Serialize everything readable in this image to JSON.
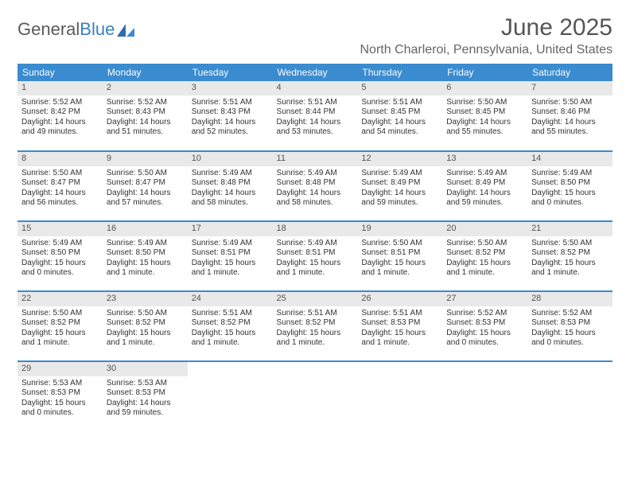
{
  "logo": {
    "text1": "General",
    "text2": "Blue"
  },
  "title": "June 2025",
  "location": "North Charleroi, Pennsylvania, United States",
  "colors": {
    "header_bg": "#3a8bcf",
    "header_text": "#ffffff",
    "daynum_bg": "#e9e9e9",
    "rule": "#3a8bcf",
    "logo_gray": "#5a5a5a",
    "logo_blue": "#3a7fbf"
  },
  "weekdays": [
    "Sunday",
    "Monday",
    "Tuesday",
    "Wednesday",
    "Thursday",
    "Friday",
    "Saturday"
  ],
  "weeks": [
    [
      {
        "n": "1",
        "sr": "Sunrise: 5:52 AM",
        "ss": "Sunset: 8:42 PM",
        "dl": "Daylight: 14 hours and 49 minutes."
      },
      {
        "n": "2",
        "sr": "Sunrise: 5:52 AM",
        "ss": "Sunset: 8:43 PM",
        "dl": "Daylight: 14 hours and 51 minutes."
      },
      {
        "n": "3",
        "sr": "Sunrise: 5:51 AM",
        "ss": "Sunset: 8:43 PM",
        "dl": "Daylight: 14 hours and 52 minutes."
      },
      {
        "n": "4",
        "sr": "Sunrise: 5:51 AM",
        "ss": "Sunset: 8:44 PM",
        "dl": "Daylight: 14 hours and 53 minutes."
      },
      {
        "n": "5",
        "sr": "Sunrise: 5:51 AM",
        "ss": "Sunset: 8:45 PM",
        "dl": "Daylight: 14 hours and 54 minutes."
      },
      {
        "n": "6",
        "sr": "Sunrise: 5:50 AM",
        "ss": "Sunset: 8:45 PM",
        "dl": "Daylight: 14 hours and 55 minutes."
      },
      {
        "n": "7",
        "sr": "Sunrise: 5:50 AM",
        "ss": "Sunset: 8:46 PM",
        "dl": "Daylight: 14 hours and 55 minutes."
      }
    ],
    [
      {
        "n": "8",
        "sr": "Sunrise: 5:50 AM",
        "ss": "Sunset: 8:47 PM",
        "dl": "Daylight: 14 hours and 56 minutes."
      },
      {
        "n": "9",
        "sr": "Sunrise: 5:50 AM",
        "ss": "Sunset: 8:47 PM",
        "dl": "Daylight: 14 hours and 57 minutes."
      },
      {
        "n": "10",
        "sr": "Sunrise: 5:49 AM",
        "ss": "Sunset: 8:48 PM",
        "dl": "Daylight: 14 hours and 58 minutes."
      },
      {
        "n": "11",
        "sr": "Sunrise: 5:49 AM",
        "ss": "Sunset: 8:48 PM",
        "dl": "Daylight: 14 hours and 58 minutes."
      },
      {
        "n": "12",
        "sr": "Sunrise: 5:49 AM",
        "ss": "Sunset: 8:49 PM",
        "dl": "Daylight: 14 hours and 59 minutes."
      },
      {
        "n": "13",
        "sr": "Sunrise: 5:49 AM",
        "ss": "Sunset: 8:49 PM",
        "dl": "Daylight: 14 hours and 59 minutes."
      },
      {
        "n": "14",
        "sr": "Sunrise: 5:49 AM",
        "ss": "Sunset: 8:50 PM",
        "dl": "Daylight: 15 hours and 0 minutes."
      }
    ],
    [
      {
        "n": "15",
        "sr": "Sunrise: 5:49 AM",
        "ss": "Sunset: 8:50 PM",
        "dl": "Daylight: 15 hours and 0 minutes."
      },
      {
        "n": "16",
        "sr": "Sunrise: 5:49 AM",
        "ss": "Sunset: 8:50 PM",
        "dl": "Daylight: 15 hours and 1 minute."
      },
      {
        "n": "17",
        "sr": "Sunrise: 5:49 AM",
        "ss": "Sunset: 8:51 PM",
        "dl": "Daylight: 15 hours and 1 minute."
      },
      {
        "n": "18",
        "sr": "Sunrise: 5:49 AM",
        "ss": "Sunset: 8:51 PM",
        "dl": "Daylight: 15 hours and 1 minute."
      },
      {
        "n": "19",
        "sr": "Sunrise: 5:50 AM",
        "ss": "Sunset: 8:51 PM",
        "dl": "Daylight: 15 hours and 1 minute."
      },
      {
        "n": "20",
        "sr": "Sunrise: 5:50 AM",
        "ss": "Sunset: 8:52 PM",
        "dl": "Daylight: 15 hours and 1 minute."
      },
      {
        "n": "21",
        "sr": "Sunrise: 5:50 AM",
        "ss": "Sunset: 8:52 PM",
        "dl": "Daylight: 15 hours and 1 minute."
      }
    ],
    [
      {
        "n": "22",
        "sr": "Sunrise: 5:50 AM",
        "ss": "Sunset: 8:52 PM",
        "dl": "Daylight: 15 hours and 1 minute."
      },
      {
        "n": "23",
        "sr": "Sunrise: 5:50 AM",
        "ss": "Sunset: 8:52 PM",
        "dl": "Daylight: 15 hours and 1 minute."
      },
      {
        "n": "24",
        "sr": "Sunrise: 5:51 AM",
        "ss": "Sunset: 8:52 PM",
        "dl": "Daylight: 15 hours and 1 minute."
      },
      {
        "n": "25",
        "sr": "Sunrise: 5:51 AM",
        "ss": "Sunset: 8:52 PM",
        "dl": "Daylight: 15 hours and 1 minute."
      },
      {
        "n": "26",
        "sr": "Sunrise: 5:51 AM",
        "ss": "Sunset: 8:53 PM",
        "dl": "Daylight: 15 hours and 1 minute."
      },
      {
        "n": "27",
        "sr": "Sunrise: 5:52 AM",
        "ss": "Sunset: 8:53 PM",
        "dl": "Daylight: 15 hours and 0 minutes."
      },
      {
        "n": "28",
        "sr": "Sunrise: 5:52 AM",
        "ss": "Sunset: 8:53 PM",
        "dl": "Daylight: 15 hours and 0 minutes."
      }
    ],
    [
      {
        "n": "29",
        "sr": "Sunrise: 5:53 AM",
        "ss": "Sunset: 8:53 PM",
        "dl": "Daylight: 15 hours and 0 minutes."
      },
      {
        "n": "30",
        "sr": "Sunrise: 5:53 AM",
        "ss": "Sunset: 8:53 PM",
        "dl": "Daylight: 14 hours and 59 minutes."
      },
      null,
      null,
      null,
      null,
      null
    ]
  ]
}
